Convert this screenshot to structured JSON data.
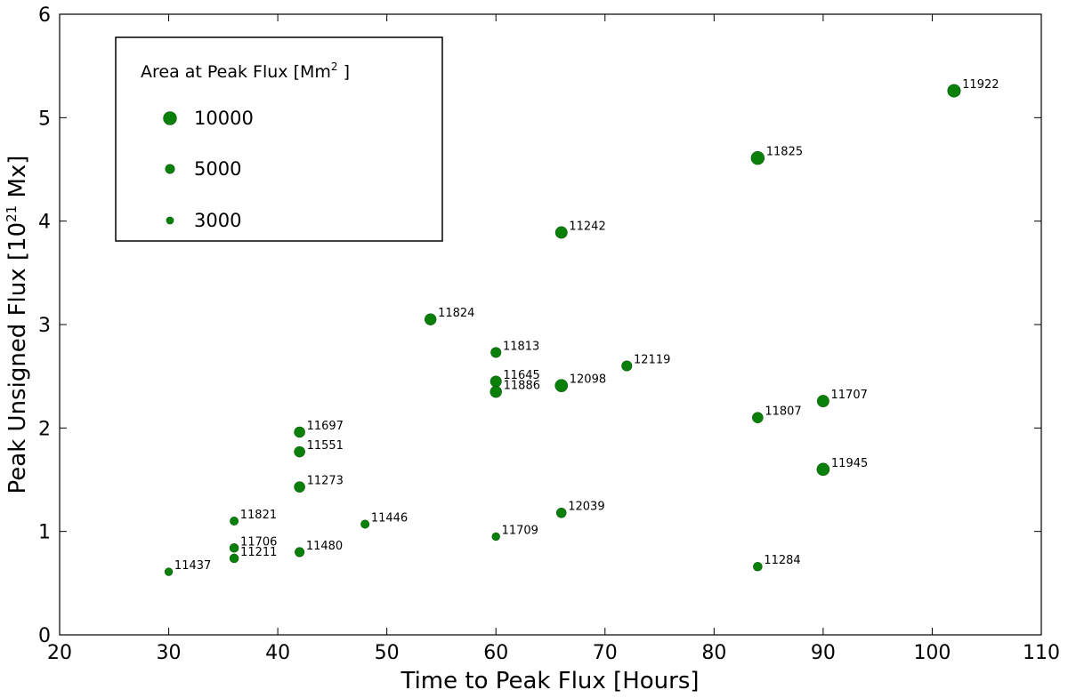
{
  "chart_data": {
    "type": "scatter",
    "xlabel": "Time to Peak Flux [Hours]",
    "ylabel_prefix": "Peak Unsigned Flux [10",
    "ylabel_sup": "21",
    "ylabel_suffix": " Mx]",
    "xlim": [
      20,
      110
    ],
    "ylim": [
      0,
      6
    ],
    "xticks": [
      20,
      30,
      40,
      50,
      60,
      70,
      80,
      90,
      100,
      110
    ],
    "yticks": [
      0,
      1,
      2,
      3,
      4,
      5,
      6
    ],
    "grid": false,
    "color": "#0a7f0a",
    "legend": {
      "title_prefix": "Area at Peak Flux [Mm",
      "title_sup": "2",
      "title_suffix": " ]",
      "placement": "top-left",
      "entries": [
        {
          "label": "10000",
          "area": 10000
        },
        {
          "label": "5000",
          "area": 5000
        },
        {
          "label": "3000",
          "area": 3000
        }
      ]
    },
    "points": [
      {
        "id": "11922",
        "x": 102,
        "y": 5.26,
        "area": 9500
      },
      {
        "id": "11825",
        "x": 84,
        "y": 4.61,
        "area": 10000
      },
      {
        "id": "11242",
        "x": 66,
        "y": 3.89,
        "area": 8000
      },
      {
        "id": "11824",
        "x": 54,
        "y": 3.05,
        "area": 7500
      },
      {
        "id": "11813",
        "x": 60,
        "y": 2.73,
        "area": 6000
      },
      {
        "id": "12119",
        "x": 72,
        "y": 2.6,
        "area": 6000
      },
      {
        "id": "11645",
        "x": 60,
        "y": 2.45,
        "area": 7000
      },
      {
        "id": "12098",
        "x": 66,
        "y": 2.41,
        "area": 9000
      },
      {
        "id": "11886",
        "x": 60,
        "y": 2.35,
        "area": 7500
      },
      {
        "id": "11707",
        "x": 90,
        "y": 2.26,
        "area": 8000
      },
      {
        "id": "11807",
        "x": 84,
        "y": 2.1,
        "area": 6500
      },
      {
        "id": "11697",
        "x": 42,
        "y": 1.96,
        "area": 6500
      },
      {
        "id": "11551",
        "x": 42,
        "y": 1.77,
        "area": 6500
      },
      {
        "id": "11945",
        "x": 90,
        "y": 1.6,
        "area": 9000
      },
      {
        "id": "11273",
        "x": 42,
        "y": 1.43,
        "area": 6500
      },
      {
        "id": "12039",
        "x": 66,
        "y": 1.18,
        "area": 5500
      },
      {
        "id": "11821",
        "x": 36,
        "y": 1.1,
        "area": 4000
      },
      {
        "id": "11446",
        "x": 48,
        "y": 1.07,
        "area": 4000
      },
      {
        "id": "11709",
        "x": 60,
        "y": 0.95,
        "area": 3500
      },
      {
        "id": "11706",
        "x": 36,
        "y": 0.84,
        "area": 4500
      },
      {
        "id": "11480",
        "x": 42,
        "y": 0.8,
        "area": 5000
      },
      {
        "id": "11211",
        "x": 36,
        "y": 0.74,
        "area": 4500
      },
      {
        "id": "11284",
        "x": 84,
        "y": 0.66,
        "area": 4500
      },
      {
        "id": "11437",
        "x": 30,
        "y": 0.61,
        "area": 3500
      }
    ]
  }
}
